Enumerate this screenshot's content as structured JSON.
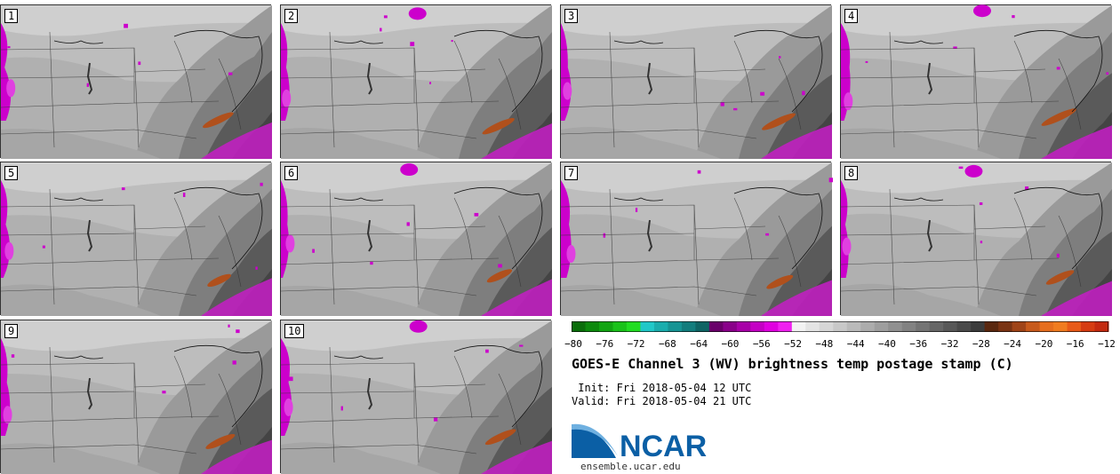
{
  "title": "GOES-E Channel 3 (WV) brightness temp postage stamp (C)",
  "init_label": " Init:",
  "init_value": "Fri 2018-05-04 12 UTC",
  "valid_label": "Valid:",
  "valid_value": "Fri 2018-05-04 21 UTC",
  "logo_text": "NCAR",
  "logo_url": "ensemble.ucar.edu",
  "panels": [
    "1",
    "2",
    "3",
    "4",
    "5",
    "6",
    "7",
    "8",
    "9",
    "10"
  ],
  "colorbar": {
    "tick_labels": [
      "−80",
      "−76",
      "−72",
      "−68",
      "−64",
      "−60",
      "−56",
      "−52",
      "−48",
      "−44",
      "−40",
      "−36",
      "−32",
      "−28",
      "−24",
      "−20",
      "−16",
      "−12"
    ],
    "colors": [
      "#0a6e0a",
      "#0d8a0d",
      "#12a512",
      "#1ac21a",
      "#22dd22",
      "#20c8c8",
      "#1aadad",
      "#179494",
      "#137d7d",
      "#0f6464",
      "#6a006a",
      "#8a008a",
      "#a800a8",
      "#c400c4",
      "#e000e0",
      "#f020f0",
      "#f2f2f2",
      "#e4e4e4",
      "#d6d6d6",
      "#c8c8c8",
      "#bababa",
      "#acacac",
      "#9e9e9e",
      "#909090",
      "#828282",
      "#747474",
      "#666666",
      "#585858",
      "#4a4a4a",
      "#3c3c3c",
      "#5a2810",
      "#7a3414",
      "#a04418",
      "#c85a1c",
      "#e66e1e",
      "#f07c20",
      "#e85a18",
      "#d63c12",
      "#c42a10"
    ]
  }
}
